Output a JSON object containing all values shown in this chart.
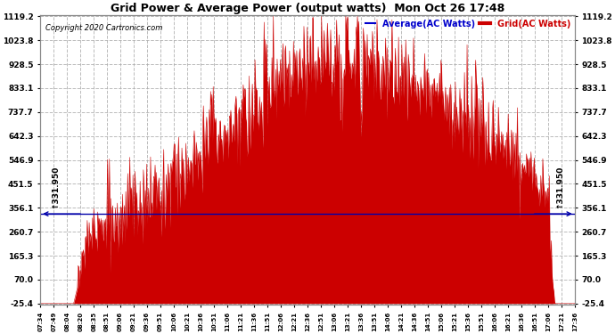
{
  "title": "Grid Power & Average Power (output watts)  Mon Oct 26 17:48",
  "copyright": "Copyright 2020 Cartronics.com",
  "legend_avg": "Average(AC Watts)",
  "legend_grid": "Grid(AC Watts)",
  "avg_value": 331.95,
  "avg_label": "331.950",
  "y_ticks": [
    1119.2,
    1023.8,
    928.5,
    833.1,
    737.7,
    642.3,
    546.9,
    451.5,
    356.1,
    260.7,
    165.3,
    70.0,
    -25.4
  ],
  "x_labels": [
    "07:34",
    "07:49",
    "08:04",
    "08:20",
    "08:35",
    "08:51",
    "09:06",
    "09:21",
    "09:36",
    "09:51",
    "10:06",
    "10:21",
    "10:36",
    "10:51",
    "11:06",
    "11:21",
    "11:36",
    "11:51",
    "12:06",
    "12:21",
    "12:36",
    "12:51",
    "13:06",
    "13:21",
    "13:36",
    "13:51",
    "14:06",
    "14:21",
    "14:36",
    "14:51",
    "15:06",
    "15:21",
    "15:36",
    "15:51",
    "16:06",
    "16:21",
    "16:36",
    "16:51",
    "17:06",
    "17:21",
    "17:36"
  ],
  "fill_color": "#CC0000",
  "line_color": "#CC0000",
  "avg_line_color": "#0000AA",
  "background_color": "#ffffff",
  "grid_color": "#aaaaaa",
  "title_color": "#000000",
  "copyright_color": "#000000",
  "legend_avg_color": "#0000CC",
  "legend_grid_color": "#CC0000",
  "ymin": -25.4,
  "ymax": 1119.2
}
